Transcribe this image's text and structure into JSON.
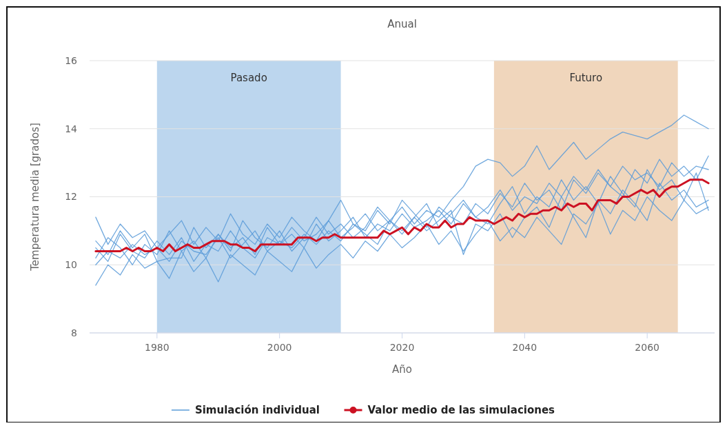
{
  "chart_data": {
    "type": "line",
    "title": "Anual",
    "xlabel": "Año",
    "ylabel": "Temperatura media [grados]",
    "xlim": [
      1969,
      2071
    ],
    "ylim": [
      8,
      16
    ],
    "xticks": [
      1980,
      2000,
      2020,
      2040,
      2060
    ],
    "yticks": [
      8,
      10,
      12,
      14,
      16
    ],
    "grid": "y",
    "legend": "bottom",
    "bands": [
      {
        "axis": "x",
        "from": 1980,
        "to": 2010,
        "label": "Pasado",
        "color": "#bcd6ee"
      },
      {
        "axis": "x",
        "from": 2035,
        "to": 2065,
        "label": "Futuro",
        "color": "#f0d6bc"
      }
    ],
    "x": [
      1970,
      1972,
      1974,
      1976,
      1978,
      1980,
      1982,
      1984,
      1986,
      1988,
      1990,
      1992,
      1994,
      1996,
      1998,
      2000,
      2002,
      2004,
      2006,
      2008,
      2010,
      2012,
      2014,
      2016,
      2018,
      2020,
      2022,
      2024,
      2026,
      2028,
      2030,
      2032,
      2034,
      2036,
      2038,
      2040,
      2042,
      2044,
      2046,
      2048,
      2050,
      2052,
      2054,
      2056,
      2058,
      2060,
      2062,
      2064,
      2066,
      2068,
      2070
    ],
    "series": [
      {
        "name": "Simulación individual",
        "color": "#5a9bd8",
        "values": [
          10.2,
          10.8,
          10.5,
          10.0,
          10.6,
          10.3,
          11.0,
          10.4,
          10.7,
          10.2,
          10.9,
          10.5,
          10.8,
          10.3,
          11.1,
          10.6,
          10.9,
          10.5,
          11.2,
          10.7,
          11.0,
          11.4,
          10.8,
          11.2,
          11.0,
          11.5,
          11.1,
          11.3,
          11.6,
          11.2,
          11.8,
          11.4,
          11.7,
          12.2,
          11.6,
          12.0,
          11.8,
          12.4,
          12.0,
          12.6,
          12.2,
          12.8,
          12.3,
          12.9,
          12.5,
          12.7,
          12.3,
          13.0,
          12.6,
          12.9,
          12.8
        ]
      },
      {
        "color": "#5a9bd8",
        "values": [
          10.5,
          10.1,
          10.9,
          10.4,
          10.2,
          10.7,
          10.3,
          10.8,
          10.1,
          10.6,
          10.4,
          11.0,
          10.5,
          10.2,
          10.8,
          10.6,
          11.1,
          10.7,
          10.9,
          11.3,
          10.8,
          11.1,
          11.5,
          11.0,
          11.3,
          11.7,
          11.2,
          11.6,
          11.4,
          11.9,
          12.3,
          12.9,
          13.1,
          13.0,
          12.6,
          12.9,
          13.5,
          12.8,
          13.2,
          13.6,
          13.1,
          13.4,
          13.7,
          13.9,
          13.8,
          13.7,
          13.9,
          14.1,
          14.4,
          14.2,
          14.0
        ]
      },
      {
        "color": "#5a9bd8",
        "values": [
          9.4,
          10.0,
          9.7,
          10.3,
          9.9,
          10.1,
          9.6,
          10.4,
          9.8,
          10.2,
          9.5,
          10.3,
          10.0,
          9.7,
          10.4,
          10.1,
          9.8,
          10.5,
          9.9,
          10.3,
          10.6,
          10.2,
          10.7,
          10.4,
          10.9,
          10.5,
          10.8,
          11.2,
          10.6,
          11.0,
          10.4,
          10.9,
          11.3,
          10.7,
          11.1,
          10.8,
          11.4,
          11.0,
          10.6,
          11.5,
          11.2,
          11.8,
          10.9,
          11.6,
          11.3,
          12.0,
          11.6,
          11.3,
          11.9,
          11.5,
          11.7
        ]
      },
      {
        "color": "#5a9bd8",
        "values": [
          11.4,
          10.6,
          11.2,
          10.8,
          11.0,
          10.5,
          10.9,
          11.3,
          10.6,
          11.1,
          10.7,
          11.5,
          10.9,
          10.6,
          11.2,
          10.8,
          11.4,
          11.0,
          10.7,
          11.3,
          11.9,
          11.2,
          11.0,
          11.6,
          11.2,
          11.9,
          11.5,
          11.1,
          11.7,
          11.4,
          11.2,
          11.8,
          11.5,
          12.1,
          11.7,
          12.4,
          11.9,
          12.2,
          11.6,
          12.5,
          12.1,
          12.7,
          12.3,
          12.0,
          12.8,
          12.4,
          13.1,
          12.6,
          12.9,
          12.5,
          13.2
        ]
      },
      {
        "color": "#5a9bd8",
        "values": [
          10.0,
          10.4,
          10.2,
          10.6,
          10.3,
          10.5,
          10.1,
          10.7,
          10.4,
          10.3,
          10.8,
          10.2,
          10.6,
          11.0,
          10.4,
          10.7,
          10.5,
          10.9,
          10.6,
          11.0,
          10.7,
          11.2,
          10.9,
          10.6,
          11.3,
          10.9,
          11.4,
          11.0,
          11.3,
          11.6,
          10.3,
          11.2,
          11.0,
          11.5,
          10.8,
          11.4,
          11.7,
          11.1,
          12.0,
          11.4,
          10.8,
          11.9,
          11.5,
          12.2,
          11.8,
          11.3,
          12.4,
          11.9,
          12.2,
          11.7,
          11.9
        ]
      },
      {
        "color": "#5a9bd8",
        "values": [
          10.7,
          10.3,
          11.0,
          10.5,
          10.9,
          10.1,
          10.2,
          10.2,
          11.1,
          10.5,
          10.9,
          10.4,
          11.3,
          10.8,
          10.5,
          11.0,
          10.4,
          10.8,
          11.4,
          10.9,
          11.2,
          10.8,
          11.1,
          11.7,
          11.3,
          11.0,
          11.4,
          11.8,
          11.1,
          11.5,
          11.9,
          11.4,
          11.2,
          11.8,
          12.3,
          11.5,
          12.0,
          11.7,
          12.5,
          11.9,
          12.3,
          11.8,
          12.6,
          12.1,
          11.7,
          12.8,
          12.2,
          12.5,
          11.9,
          12.7,
          11.6
        ]
      },
      {
        "name": "Valor medio de las simulaciones",
        "color": "#cc1122",
        "x": [
          1970,
          1971,
          1972,
          1973,
          1974,
          1975,
          1976,
          1977,
          1978,
          1979,
          1980,
          1981,
          1982,
          1983,
          1984,
          1985,
          1986,
          1987,
          1988,
          1989,
          1990,
          1991,
          1992,
          1993,
          1994,
          1995,
          1996,
          1997,
          1998,
          1999,
          2000,
          2001,
          2002,
          2003,
          2004,
          2005,
          2006,
          2007,
          2008,
          2009,
          2010,
          2011,
          2012,
          2013,
          2014,
          2015,
          2016,
          2017,
          2018,
          2019,
          2020,
          2021,
          2022,
          2023,
          2024,
          2025,
          2026,
          2027,
          2028,
          2029,
          2030,
          2031,
          2032,
          2033,
          2034,
          2035,
          2036,
          2037,
          2038,
          2039,
          2040,
          2041,
          2042,
          2043,
          2044,
          2045,
          2046,
          2047,
          2048,
          2049,
          2050,
          2051,
          2052,
          2053,
          2054,
          2055,
          2056,
          2057,
          2058,
          2059,
          2060,
          2061,
          2062,
          2063,
          2064,
          2065,
          2066,
          2067,
          2068,
          2069,
          2070
        ],
        "values": [
          10.4,
          10.4,
          10.4,
          10.4,
          10.4,
          10.5,
          10.4,
          10.5,
          10.4,
          10.4,
          10.5,
          10.4,
          10.6,
          10.4,
          10.5,
          10.6,
          10.5,
          10.5,
          10.6,
          10.7,
          10.7,
          10.7,
          10.6,
          10.6,
          10.5,
          10.5,
          10.4,
          10.6,
          10.6,
          10.6,
          10.6,
          10.6,
          10.6,
          10.8,
          10.8,
          10.8,
          10.7,
          10.8,
          10.8,
          10.9,
          10.8,
          10.8,
          10.8,
          10.8,
          10.8,
          10.8,
          10.8,
          11.0,
          10.9,
          11.0,
          11.1,
          10.9,
          11.1,
          11.0,
          11.2,
          11.1,
          11.1,
          11.3,
          11.1,
          11.2,
          11.2,
          11.4,
          11.3,
          11.3,
          11.3,
          11.2,
          11.3,
          11.4,
          11.3,
          11.5,
          11.4,
          11.5,
          11.5,
          11.6,
          11.6,
          11.7,
          11.6,
          11.8,
          11.7,
          11.8,
          11.8,
          11.6,
          11.9,
          11.9,
          11.9,
          11.8,
          12.0,
          12.0,
          12.1,
          12.2,
          12.1,
          12.2,
          12.0,
          12.2,
          12.3,
          12.3,
          12.4,
          12.5,
          12.5,
          12.5,
          12.4
        ]
      }
    ]
  }
}
